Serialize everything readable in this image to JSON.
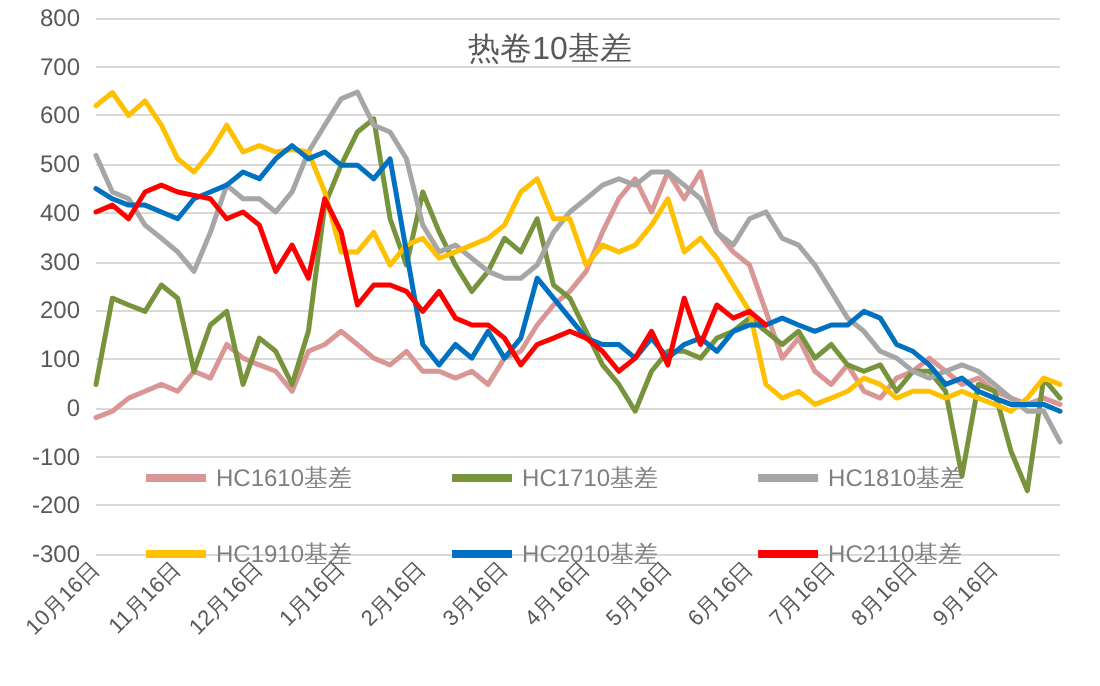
{
  "chart_data": {
    "type": "line",
    "title": "热卷10基差",
    "categories": [
      "10月16日",
      null,
      null,
      null,
      null,
      "11月16日",
      null,
      null,
      null,
      null,
      "12月16日",
      null,
      null,
      null,
      null,
      "1月16日",
      null,
      null,
      null,
      null,
      "2月16日",
      null,
      null,
      null,
      null,
      "3月16日",
      null,
      null,
      null,
      null,
      "4月16日",
      null,
      null,
      null,
      null,
      "5月16日",
      null,
      null,
      null,
      null,
      "6月16日",
      null,
      null,
      null,
      null,
      "7月16日",
      null,
      null,
      null,
      null,
      "8月16日",
      null,
      null,
      null,
      null,
      "9月16日",
      null,
      null,
      null,
      null
    ],
    "series": [
      {
        "name": "HC1610基差",
        "color": "#d99694",
        "values": [
          -20,
          -7,
          20,
          34,
          48,
          34,
          75,
          61,
          130,
          102,
          88,
          75,
          34,
          116,
          130,
          157,
          130,
          102,
          88,
          116,
          75,
          75,
          61,
          75,
          48,
          102,
          116,
          170,
          211,
          239,
          280,
          361,
          429,
          470,
          402,
          484,
          429,
          484,
          361,
          320,
          293,
          198,
          102,
          143,
          75,
          48,
          88,
          34,
          20,
          61,
          75,
          102,
          75,
          48,
          61,
          34,
          20,
          7,
          20,
          7
        ]
      },
      {
        "name": "HC1710基差",
        "color": "#77933c",
        "values": [
          48,
          225,
          211,
          198,
          252,
          225,
          75,
          170,
          198,
          48,
          143,
          116,
          48,
          157,
          416,
          498,
          566,
          593,
          388,
          293,
          443,
          361,
          293,
          239,
          280,
          348,
          320,
          388,
          252,
          225,
          157,
          88,
          48,
          -7,
          75,
          116,
          116,
          102,
          143,
          157,
          184,
          157,
          130,
          157,
          102,
          130,
          88,
          75,
          88,
          34,
          75,
          75,
          34,
          -140,
          48,
          34,
          -89,
          -170,
          60,
          20
        ]
      },
      {
        "name": "HC1810基差",
        "color": "#a6a6a6",
        "values": [
          518,
          443,
          429,
          375,
          348,
          320,
          280,
          360,
          457,
          429,
          429,
          402,
          443,
          525,
          580,
          634,
          648,
          580,
          566,
          511,
          375,
          320,
          334,
          307,
          280,
          266,
          266,
          293,
          360,
          402,
          429,
          457,
          470,
          457,
          484,
          484,
          457,
          429,
          360,
          334,
          388,
          402,
          348,
          334,
          293,
          239,
          184,
          157,
          116,
          102,
          75,
          61,
          75,
          88,
          75,
          48,
          20,
          -7,
          -7,
          -70
        ]
      },
      {
        "name": "HC1910基差",
        "color": "#ffc000",
        "values": [
          620,
          647,
          600,
          630,
          580,
          511,
          484,
          525,
          580,
          525,
          538,
          525,
          530,
          525,
          443,
          320,
          320,
          360,
          293,
          334,
          348,
          307,
          320,
          334,
          348,
          375,
          443,
          470,
          388,
          388,
          293,
          334,
          320,
          334,
          375,
          429,
          320,
          348,
          307,
          252,
          198,
          48,
          20,
          34,
          7,
          20,
          34,
          61,
          48,
          20,
          34,
          34,
          20,
          34,
          20,
          7,
          -7,
          20,
          61,
          48
        ]
      },
      {
        "name": "HC2010基差",
        "color": "#0070c0",
        "values": [
          450,
          429,
          416,
          416,
          402,
          388,
          429,
          443,
          457,
          484,
          470,
          511,
          538,
          511,
          525,
          498,
          498,
          470,
          511,
          320,
          130,
          88,
          130,
          102,
          157,
          102,
          143,
          266,
          225,
          184,
          143,
          130,
          130,
          102,
          143,
          102,
          130,
          143,
          116,
          157,
          170,
          170,
          184,
          170,
          157,
          170,
          170,
          198,
          184,
          130,
          116,
          88,
          48,
          61,
          34,
          20,
          7,
          7,
          7,
          -7
        ]
      },
      {
        "name": "HC2110基差",
        "color": "#ff0000",
        "values": [
          402,
          416,
          388,
          443,
          457,
          443,
          436,
          429,
          388,
          402,
          375,
          280,
          334,
          266,
          429,
          361,
          211,
          252,
          252,
          239,
          198,
          239,
          184,
          170,
          170,
          143,
          88,
          130,
          143,
          157,
          143,
          116,
          75,
          102,
          157,
          88,
          225,
          130,
          211,
          184,
          198,
          170,
          null,
          null,
          null,
          null,
          null,
          null,
          null,
          null,
          null,
          null,
          null,
          null,
          null,
          null,
          null,
          null,
          null,
          null
        ]
      }
    ],
    "ylim": [
      -300,
      800
    ],
    "yticks": [
      -300,
      -200,
      -100,
      0,
      100,
      200,
      300,
      400,
      500,
      600,
      700,
      800
    ],
    "grid": "y",
    "legend": "bottom",
    "marker": "none",
    "line_style": "solid"
  }
}
